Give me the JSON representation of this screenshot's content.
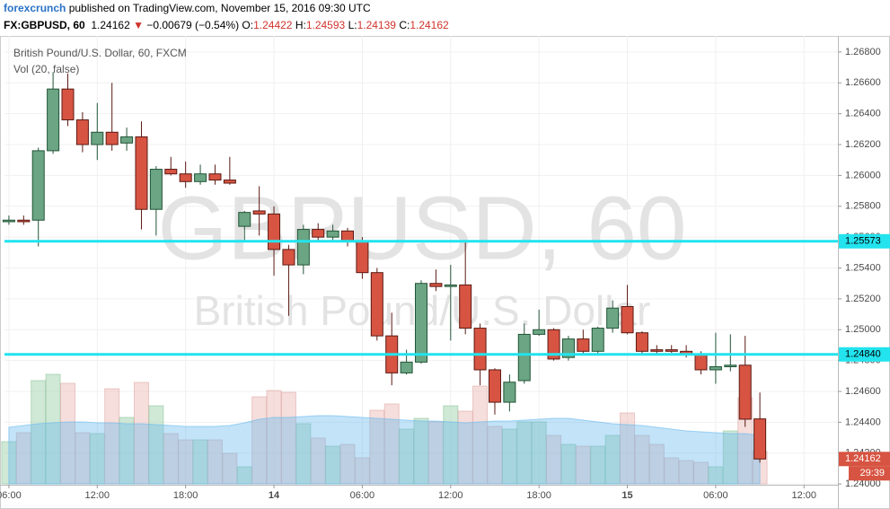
{
  "header": {
    "author": "forexcrunch",
    "published": "published on TradingView.com, November 15, 2016 09:30 UTC",
    "symbol": "FX:GBPUSD, 60",
    "last": "1.24162",
    "arrow": "▼",
    "change": "−0.00679 (−0.54%)",
    "ohlc": [
      {
        "label": "O:",
        "value": "1.24422"
      },
      {
        "label": "H:",
        "value": "1.24593"
      },
      {
        "label": "L:",
        "value": "1.24139"
      },
      {
        "label": "C:",
        "value": "1.24162"
      }
    ]
  },
  "chart_data": {
    "type": "candlestick",
    "legend": [
      "British Pound/U.S. Dollar, 60, FXCM",
      "Vol (20, false)"
    ],
    "watermark": [
      "GBPUSD, 60",
      "British Pound/U.S. Dollar"
    ],
    "up_color": "#6ba583",
    "down_color": "#d75442",
    "open": [
      1.257,
      1.2571,
      1.2571,
      1.2616,
      1.2656,
      1.2636,
      1.262,
      1.2628,
      1.2621,
      1.2625,
      1.2578,
      1.2604,
      1.2601,
      1.2596,
      1.2601,
      1.2597,
      1.2567,
      1.2577,
      1.2575,
      1.2552,
      1.2542,
      1.2565,
      1.256,
      1.2564,
      1.2557,
      1.2537,
      1.2496,
      1.2472,
      1.2479,
      1.253,
      1.2528,
      1.2529,
      1.2501,
      1.2474,
      1.2453,
      1.2467,
      1.2497,
      1.25,
      1.2482,
      1.2494,
      1.2486,
      1.2501,
      1.2515,
      1.2498,
      1.2487,
      1.2487,
      1.2486,
      1.2484,
      1.2474,
      1.2476,
      1.2477,
      1.24422
    ],
    "high": [
      1.2574,
      1.2574,
      1.2618,
      1.2667,
      1.2666,
      1.2641,
      1.2647,
      1.266,
      1.2631,
      1.2635,
      1.2606,
      1.2612,
      1.2609,
      1.2607,
      1.2607,
      1.2612,
      1.2577,
      1.2593,
      1.258,
      1.2555,
      1.2568,
      1.2569,
      1.2568,
      1.2566,
      1.256,
      1.254,
      1.2511,
      1.2487,
      1.2532,
      1.2539,
      1.2542,
      1.2557,
      1.2504,
      1.2475,
      1.2471,
      1.2504,
      1.2513,
      1.2501,
      1.2496,
      1.25,
      1.2502,
      1.2519,
      1.2529,
      1.2499,
      1.249,
      1.249,
      1.249,
      1.2486,
      1.2498,
      1.2497,
      1.2496,
      1.24593
    ],
    "low": [
      1.2568,
      1.2568,
      1.2554,
      1.2614,
      1.2632,
      1.2615,
      1.261,
      1.2616,
      1.2616,
      1.2565,
      1.2561,
      1.26,
      1.2592,
      1.2594,
      1.2594,
      1.2594,
      1.2557,
      1.2561,
      1.2535,
      1.2509,
      1.2536,
      1.2558,
      1.2558,
      1.2554,
      1.2533,
      1.2493,
      1.2464,
      1.2471,
      1.2478,
      1.2525,
      1.2493,
      1.2497,
      1.2464,
      1.2445,
      1.2447,
      1.2465,
      1.2496,
      1.248,
      1.248,
      1.2484,
      1.2484,
      1.2498,
      1.2497,
      1.2484,
      1.2484,
      1.2485,
      1.2482,
      1.2471,
      1.2465,
      1.2473,
      1.2437,
      1.24139
    ],
    "close": [
      1.2571,
      1.257,
      1.2616,
      1.2656,
      1.2636,
      1.262,
      1.2628,
      1.262,
      1.2625,
      1.2578,
      1.2604,
      1.2601,
      1.2596,
      1.2601,
      1.2597,
      1.2595,
      1.2576,
      1.2575,
      1.2552,
      1.2542,
      1.2565,
      1.256,
      1.2564,
      1.2557,
      1.2537,
      1.2496,
      1.2472,
      1.2479,
      1.253,
      1.2528,
      1.2529,
      1.2501,
      1.2474,
      1.2453,
      1.2466,
      1.2497,
      1.25,
      1.2481,
      1.2494,
      1.2486,
      1.2501,
      1.2514,
      1.2498,
      1.2486,
      1.2486,
      1.2486,
      1.2484,
      1.2474,
      1.2476,
      1.2477,
      1.2442,
      1.24162
    ],
    "volume": [
      47,
      57,
      115,
      122,
      112,
      57,
      56,
      106,
      74,
      113,
      87,
      56,
      49,
      49,
      49,
      34,
      19,
      97,
      104,
      102,
      67,
      51,
      42,
      44,
      29,
      82,
      89,
      61,
      73,
      69,
      87,
      81,
      109,
      64,
      61,
      69,
      69,
      54,
      44,
      42,
      42,
      54,
      79,
      54,
      44,
      29,
      26,
      24,
      19,
      59,
      96,
      36
    ],
    "volume_ma": [
      63,
      65,
      67,
      68,
      69,
      69,
      68,
      68,
      67,
      67,
      66,
      65,
      64,
      64,
      64,
      65,
      68,
      72,
      74,
      74,
      75,
      76,
      76,
      75,
      74,
      73,
      72,
      71,
      70,
      70,
      69,
      68,
      69,
      70,
      70,
      71,
      72,
      73,
      73,
      71,
      69,
      67,
      66,
      65,
      63,
      61,
      59,
      58,
      57,
      56,
      56,
      54
    ],
    "ylim": [
      1.23995,
      1.26881
    ],
    "yticks": [
      {
        "value": 1.24,
        "label": "1.24000"
      },
      {
        "value": 1.242,
        "label": "1.24200"
      },
      {
        "value": 1.244,
        "label": "1.24400"
      },
      {
        "value": 1.246,
        "label": "1.24600"
      },
      {
        "value": 1.248,
        "label": "1.24800"
      },
      {
        "value": 1.25,
        "label": "1.25000"
      },
      {
        "value": 1.252,
        "label": "1.25200"
      },
      {
        "value": 1.254,
        "label": "1.25400"
      },
      {
        "value": 1.256,
        "label": "1.25600"
      },
      {
        "value": 1.258,
        "label": "1.25800"
      },
      {
        "value": 1.26,
        "label": "1.26000"
      },
      {
        "value": 1.262,
        "label": "1.26200"
      },
      {
        "value": 1.264,
        "label": "1.26400"
      },
      {
        "value": 1.266,
        "label": "1.26600"
      },
      {
        "value": 1.268,
        "label": "1.26800"
      }
    ],
    "xlim": [
      -0.3,
      56.3
    ],
    "xticks": [
      {
        "value": 0,
        "label": "06:00"
      },
      {
        "value": 6,
        "label": "12:00"
      },
      {
        "value": 12,
        "label": "18:00"
      },
      {
        "value": 18,
        "label": "14"
      },
      {
        "value": 24,
        "label": "06:00"
      },
      {
        "value": 30,
        "label": "12:00"
      },
      {
        "value": 36,
        "label": "18:00"
      },
      {
        "value": 42,
        "label": "15"
      },
      {
        "value": 48,
        "label": "06:00"
      },
      {
        "value": 54,
        "label": "12:00"
      }
    ],
    "hlines": [
      {
        "value": 1.25573,
        "label": "1.25573"
      },
      {
        "value": 1.2484,
        "label": "1.24840"
      }
    ],
    "hline_color": "#22e3ee",
    "last_price": {
      "value": 1.24162,
      "label": "1.24162"
    },
    "countdown": "29:39"
  }
}
